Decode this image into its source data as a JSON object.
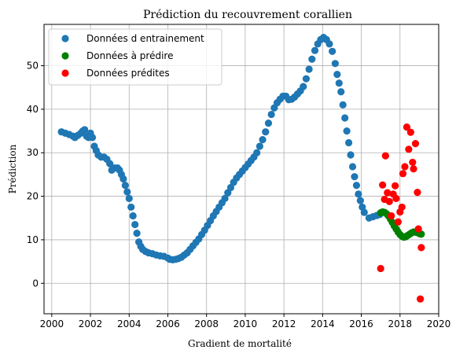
{
  "chart_data": {
    "type": "scatter",
    "title": "Prédiction du recouvrement corallien",
    "xlabel": "Gradient de mortalité",
    "ylabel": "Prédiction",
    "xlim": [
      1999.6,
      2020.0
    ],
    "ylim": [
      -7.0,
      59.5
    ],
    "xticks": [
      2000,
      2002,
      2004,
      2006,
      2008,
      2010,
      2012,
      2014,
      2016,
      2018,
      2020
    ],
    "yticks": [
      0,
      10,
      20,
      30,
      40,
      50
    ],
    "grid": true,
    "legend_position": "top-left",
    "series": [
      {
        "name": "Données d entrainement",
        "color": "#1f77b4",
        "points": [
          [
            2000.5,
            34.8
          ],
          [
            2000.7,
            34.5
          ],
          [
            2000.9,
            34.2
          ],
          [
            2001.1,
            33.8
          ],
          [
            2001.2,
            33.5
          ],
          [
            2001.35,
            34.0
          ],
          [
            2001.5,
            34.5
          ],
          [
            2001.6,
            35.0
          ],
          [
            2001.7,
            35.3
          ],
          [
            2001.8,
            33.8
          ],
          [
            2001.9,
            33.5
          ],
          [
            2002.0,
            34.5
          ],
          [
            2002.1,
            33.5
          ],
          [
            2002.2,
            31.5
          ],
          [
            2002.3,
            30.5
          ],
          [
            2002.4,
            29.5
          ],
          [
            2002.55,
            29.0
          ],
          [
            2002.7,
            29.0
          ],
          [
            2002.85,
            28.5
          ],
          [
            2003.0,
            27.5
          ],
          [
            2003.1,
            26.0
          ],
          [
            2003.25,
            26.5
          ],
          [
            2003.4,
            26.5
          ],
          [
            2003.5,
            26.0
          ],
          [
            2003.6,
            25.0
          ],
          [
            2003.7,
            24.0
          ],
          [
            2003.8,
            22.5
          ],
          [
            2003.9,
            21.0
          ],
          [
            2004.0,
            19.5
          ],
          [
            2004.1,
            17.5
          ],
          [
            2004.2,
            15.5
          ],
          [
            2004.3,
            13.5
          ],
          [
            2004.4,
            11.5
          ],
          [
            2004.5,
            9.5
          ],
          [
            2004.6,
            8.5
          ],
          [
            2004.7,
            7.8
          ],
          [
            2004.85,
            7.3
          ],
          [
            2005.0,
            7.0
          ],
          [
            2005.2,
            6.8
          ],
          [
            2005.4,
            6.5
          ],
          [
            2005.6,
            6.3
          ],
          [
            2005.8,
            6.2
          ],
          [
            2006.0,
            5.8
          ],
          [
            2006.1,
            5.5
          ],
          [
            2006.25,
            5.4
          ],
          [
            2006.4,
            5.5
          ],
          [
            2006.55,
            5.7
          ],
          [
            2006.7,
            6.0
          ],
          [
            2006.85,
            6.5
          ],
          [
            2007.0,
            7.0
          ],
          [
            2007.15,
            7.8
          ],
          [
            2007.3,
            8.6
          ],
          [
            2007.45,
            9.4
          ],
          [
            2007.6,
            10.2
          ],
          [
            2007.75,
            11.2
          ],
          [
            2007.9,
            12.2
          ],
          [
            2008.05,
            13.3
          ],
          [
            2008.2,
            14.4
          ],
          [
            2008.35,
            15.5
          ],
          [
            2008.5,
            16.5
          ],
          [
            2008.65,
            17.5
          ],
          [
            2008.8,
            18.5
          ],
          [
            2008.95,
            19.5
          ],
          [
            2009.1,
            20.8
          ],
          [
            2009.25,
            22.0
          ],
          [
            2009.4,
            23.2
          ],
          [
            2009.55,
            24.2
          ],
          [
            2009.7,
            25.0
          ],
          [
            2009.85,
            25.8
          ],
          [
            2010.0,
            26.6
          ],
          [
            2010.15,
            27.4
          ],
          [
            2010.3,
            28.2
          ],
          [
            2010.45,
            29.0
          ],
          [
            2010.6,
            30.0
          ],
          [
            2010.75,
            31.5
          ],
          [
            2010.9,
            33.0
          ],
          [
            2011.05,
            34.8
          ],
          [
            2011.2,
            36.8
          ],
          [
            2011.35,
            38.8
          ],
          [
            2011.5,
            40.3
          ],
          [
            2011.65,
            41.5
          ],
          [
            2011.8,
            42.3
          ],
          [
            2011.95,
            43.0
          ],
          [
            2012.1,
            43.0
          ],
          [
            2012.25,
            42.2
          ],
          [
            2012.4,
            42.3
          ],
          [
            2012.55,
            42.8
          ],
          [
            2012.7,
            43.5
          ],
          [
            2012.85,
            44.2
          ],
          [
            2013.0,
            45.2
          ],
          [
            2013.15,
            47.0
          ],
          [
            2013.3,
            49.2
          ],
          [
            2013.45,
            51.5
          ],
          [
            2013.6,
            53.5
          ],
          [
            2013.75,
            55.0
          ],
          [
            2013.9,
            56.0
          ],
          [
            2014.05,
            56.5
          ],
          [
            2014.2,
            56.0
          ],
          [
            2014.35,
            55.0
          ],
          [
            2014.5,
            53.3
          ],
          [
            2014.65,
            50.5
          ],
          [
            2014.75,
            48.0
          ],
          [
            2014.85,
            46.0
          ],
          [
            2014.95,
            44.0
          ],
          [
            2015.05,
            41.0
          ],
          [
            2015.15,
            38.0
          ],
          [
            2015.25,
            35.0
          ],
          [
            2015.35,
            32.3
          ],
          [
            2015.45,
            29.5
          ],
          [
            2015.55,
            26.8
          ],
          [
            2015.65,
            24.5
          ],
          [
            2015.75,
            22.5
          ],
          [
            2015.85,
            20.5
          ],
          [
            2015.95,
            19.0
          ],
          [
            2016.05,
            17.5
          ],
          [
            2016.15,
            16.3
          ],
          [
            2016.4,
            15.0
          ],
          [
            2016.6,
            15.3
          ],
          [
            2016.8,
            15.6
          ],
          [
            2016.95,
            15.8
          ]
        ]
      },
      {
        "name": "Données à prédire",
        "color": "#008000",
        "points": [
          [
            2017.0,
            16.2
          ],
          [
            2017.1,
            16.4
          ],
          [
            2017.2,
            16.3
          ],
          [
            2017.3,
            16.0
          ],
          [
            2017.4,
            15.5
          ],
          [
            2017.5,
            14.8
          ],
          [
            2017.6,
            14.0
          ],
          [
            2017.7,
            13.2
          ],
          [
            2017.8,
            12.5
          ],
          [
            2017.9,
            11.8
          ],
          [
            2018.0,
            11.2
          ],
          [
            2018.1,
            10.8
          ],
          [
            2018.2,
            10.6
          ],
          [
            2018.3,
            10.7
          ],
          [
            2018.4,
            11.0
          ],
          [
            2018.5,
            11.3
          ],
          [
            2018.6,
            11.6
          ],
          [
            2018.7,
            11.8
          ],
          [
            2018.85,
            11.7
          ],
          [
            2019.0,
            11.4
          ],
          [
            2019.1,
            11.3
          ]
        ]
      },
      {
        "name": "Données prédites",
        "color": "#ff0000",
        "points": [
          [
            2017.0,
            3.4
          ],
          [
            2017.1,
            22.6
          ],
          [
            2017.2,
            19.3
          ],
          [
            2017.25,
            29.3
          ],
          [
            2017.35,
            20.8
          ],
          [
            2017.45,
            18.8
          ],
          [
            2017.55,
            15.5
          ],
          [
            2017.65,
            20.5
          ],
          [
            2017.75,
            22.4
          ],
          [
            2017.8,
            19.5
          ],
          [
            2017.9,
            14.1
          ],
          [
            2018.0,
            16.4
          ],
          [
            2018.1,
            17.5
          ],
          [
            2018.15,
            25.2
          ],
          [
            2018.25,
            26.8
          ],
          [
            2018.35,
            35.9
          ],
          [
            2018.45,
            30.8
          ],
          [
            2018.55,
            34.7
          ],
          [
            2018.65,
            27.8
          ],
          [
            2018.7,
            26.3
          ],
          [
            2018.8,
            32.1
          ],
          [
            2018.9,
            20.9
          ],
          [
            2018.95,
            12.5
          ],
          [
            2019.05,
            -3.6
          ],
          [
            2019.1,
            8.2
          ]
        ]
      }
    ]
  }
}
